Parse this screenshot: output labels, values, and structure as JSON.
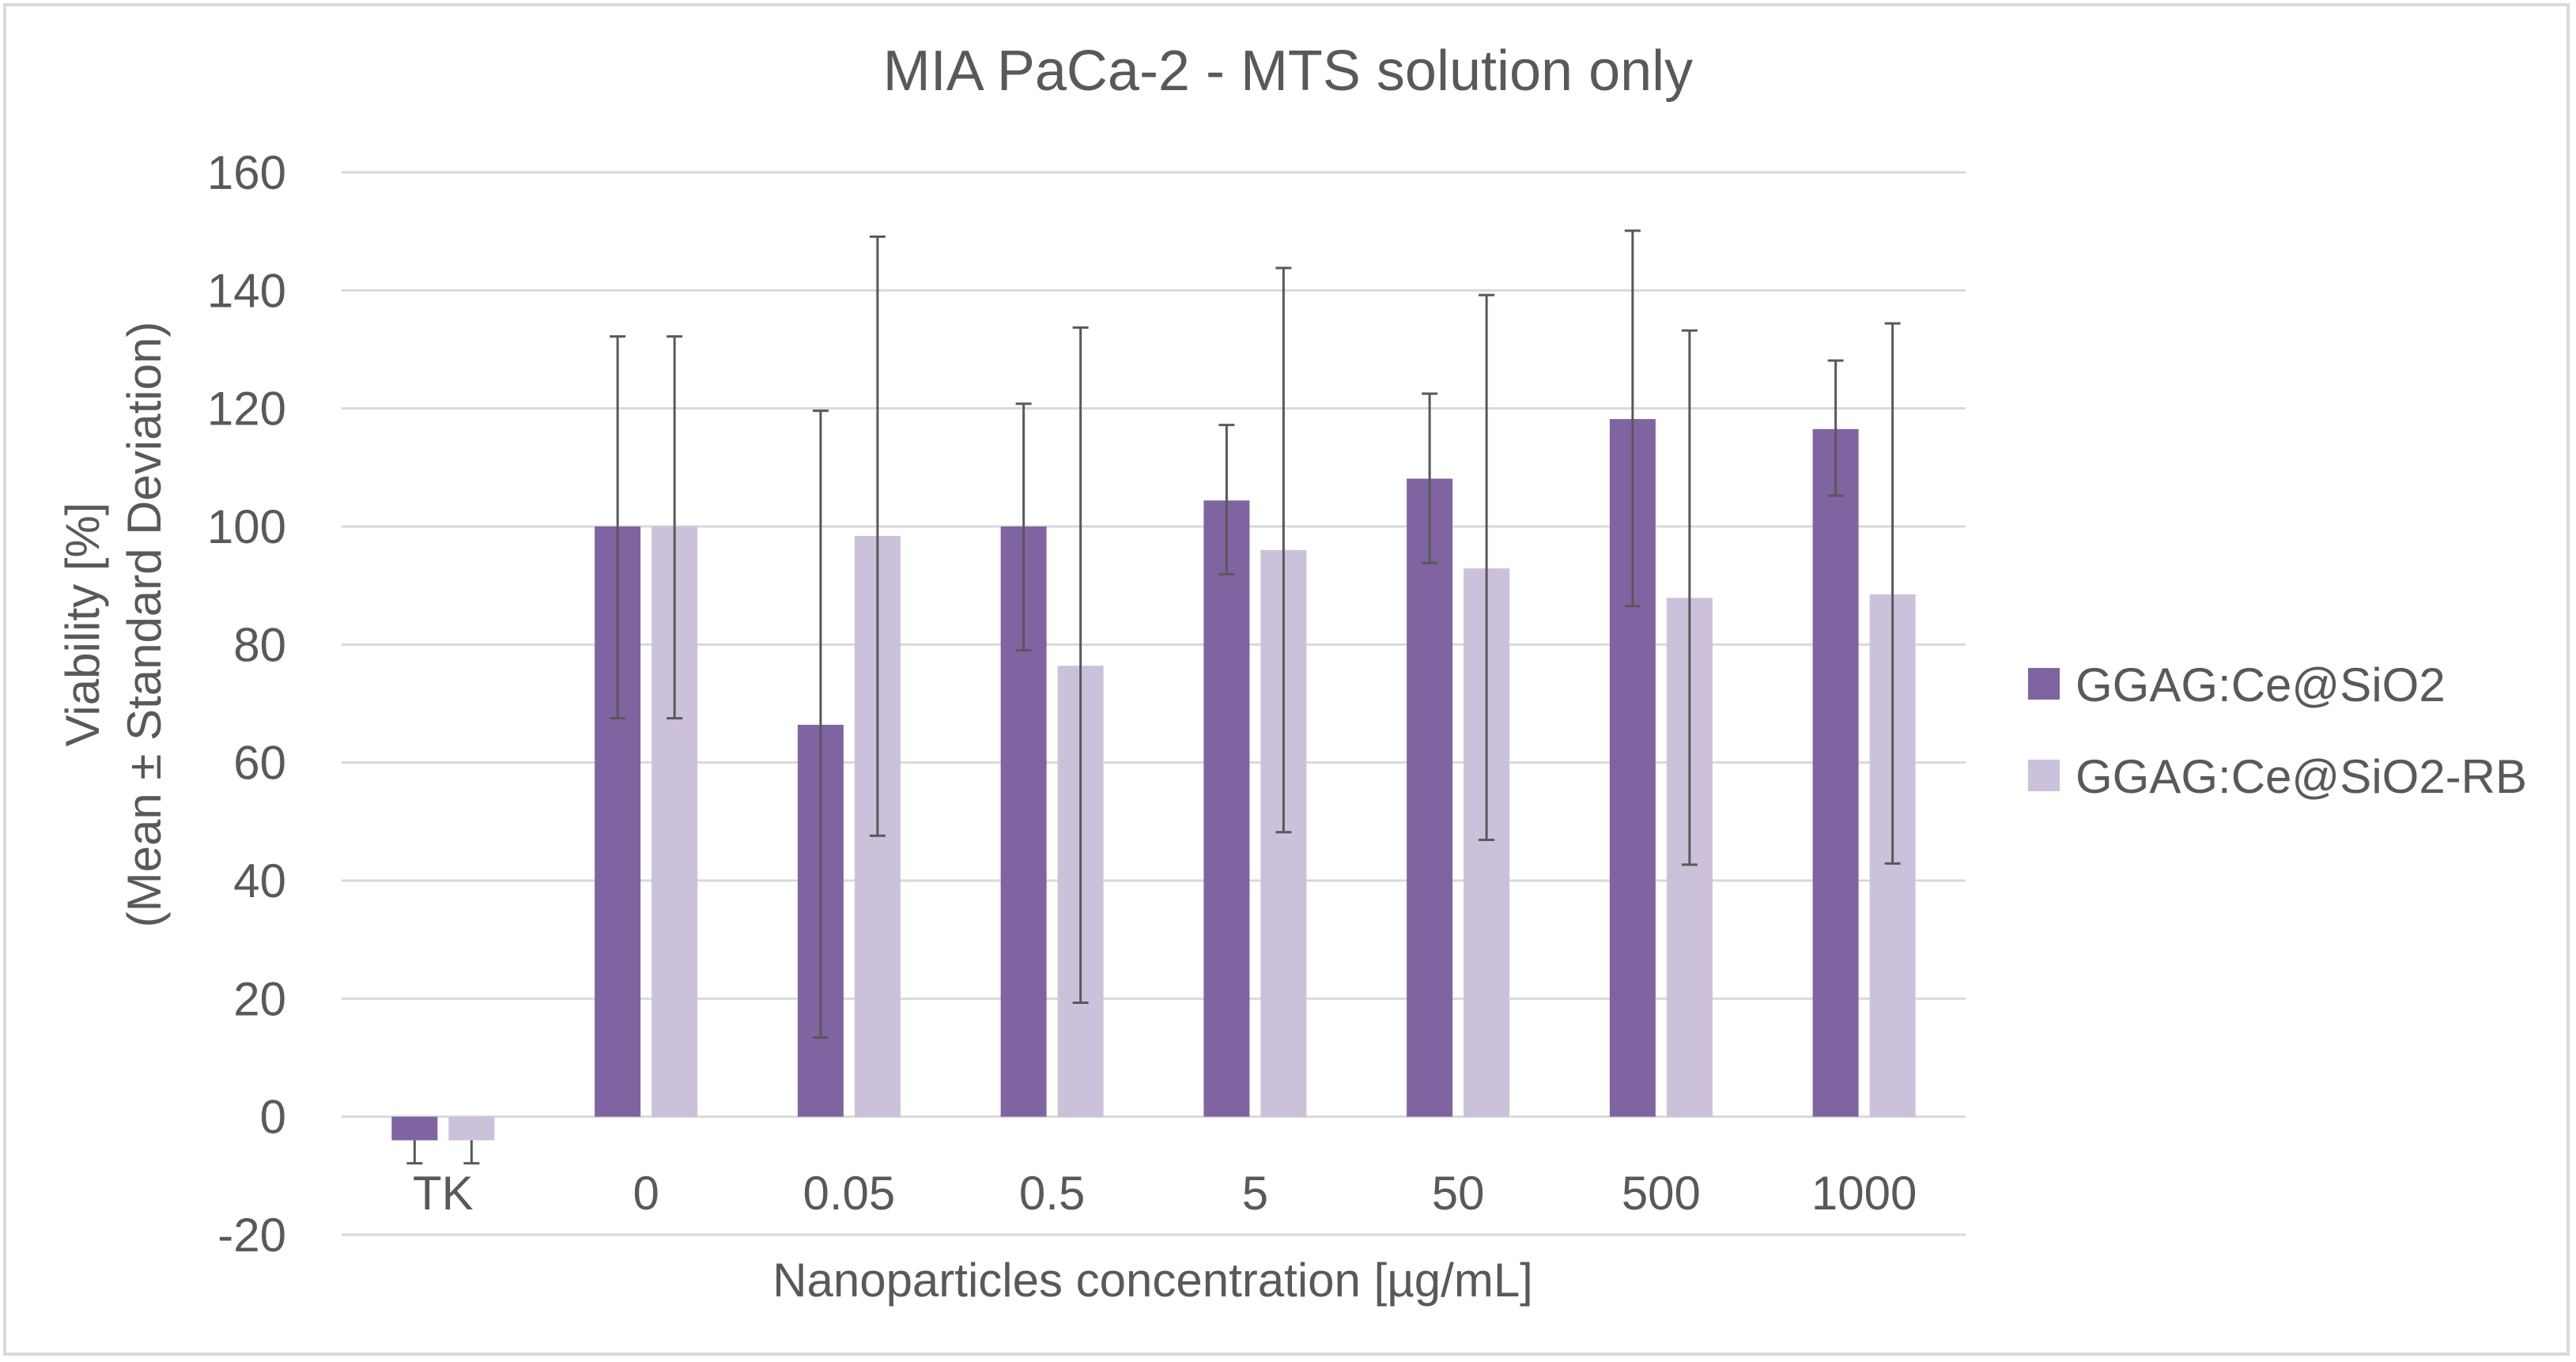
{
  "chart_data": {
    "type": "bar",
    "title": "MIA PaCa-2 - MTS solution only",
    "xlabel": "Nanoparticles concentration [µg/mL]",
    "ylabel_line1": "Viability [%]",
    "ylabel_line2": "(Mean ± Standard Deviation)",
    "ylim": [
      -20,
      160
    ],
    "yticks": [
      -20,
      0,
      20,
      40,
      60,
      80,
      100,
      120,
      140,
      160
    ],
    "ytick_labels": [
      "-20",
      "0",
      "20",
      "40",
      "60",
      "80",
      "100",
      "120",
      "140",
      "160"
    ],
    "grid": true,
    "legend_position": "right",
    "categories": [
      "TK",
      "0",
      "0.05",
      "0.5",
      "5",
      "50",
      "500",
      "1000"
    ],
    "series": [
      {
        "name": "GGAG:Ce@SiO2",
        "color": "#8064a2",
        "values": [
          -4,
          100,
          66.4,
          100,
          104.4,
          108.1,
          118.2,
          116.5
        ],
        "error_upper": [
          -4,
          132.2,
          119.6,
          120.8,
          117.2,
          122.5,
          150.1,
          128.1
        ],
        "error_lower": [
          -7.9,
          67.5,
          13.4,
          79.0,
          91.9,
          93.8,
          86.5,
          105.2
        ]
      },
      {
        "name": "GGAG:Ce@SiO2-RB",
        "color": "#ccc1da",
        "values": [
          -4,
          100,
          98.4,
          76.4,
          96.0,
          92.9,
          87.9,
          88.5
        ],
        "error_upper": [
          -4,
          132.2,
          149.1,
          133.7,
          143.8,
          139.2,
          133.2,
          134.4
        ],
        "error_lower": [
          -7.9,
          67.5,
          47.6,
          19.3,
          48.2,
          46.9,
          42.7,
          42.9
        ]
      }
    ]
  }
}
